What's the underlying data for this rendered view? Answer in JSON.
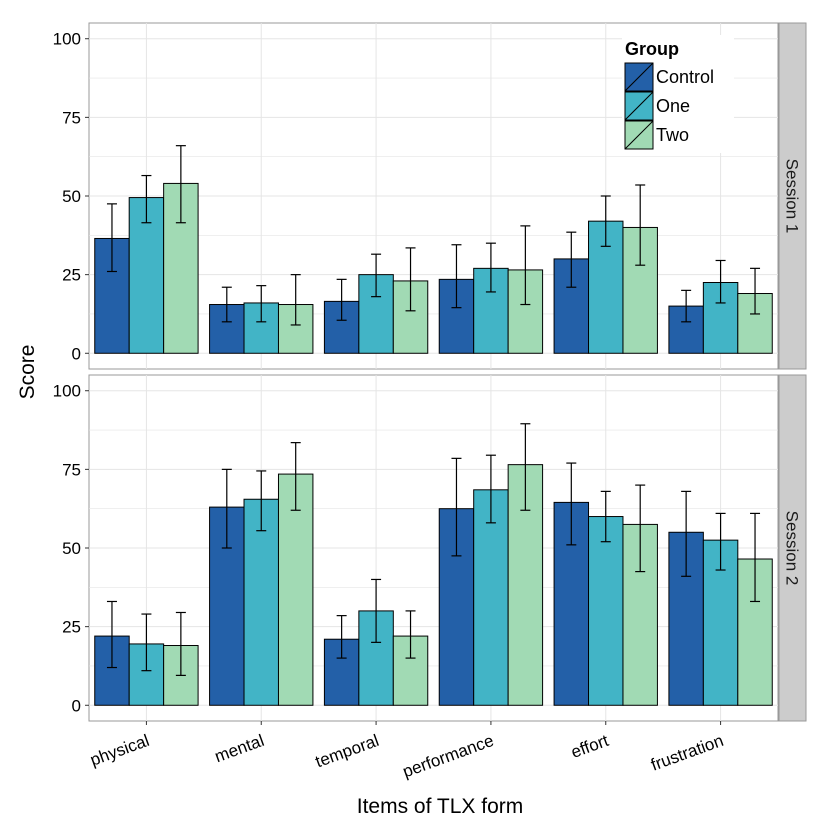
{
  "chart_data": {
    "type": "bar",
    "xlabel": "Items of TLX form",
    "ylabel": "Score",
    "ylim": [
      -5,
      105
    ],
    "yticks": [
      0,
      25,
      50,
      75,
      100
    ],
    "categories": [
      "physical",
      "mental",
      "temporal",
      "performance",
      "effort",
      "frustration"
    ],
    "legend": {
      "title": "Group",
      "position": "top-right",
      "entries": [
        "Control",
        "One",
        "Two"
      ]
    },
    "colors": {
      "Control": "#2360a8",
      "One": "#42b4c6",
      "Two": "#a1dab4",
      "strip": "#cccccc",
      "grid": "#e5e5e5",
      "panel_border": "#999999",
      "bar_outline": "#000000"
    },
    "panels": [
      {
        "label": "Session 1",
        "series": [
          {
            "name": "Control",
            "values": [
              36.5,
              15.5,
              16.5,
              23.5,
              30,
              15
            ],
            "err_low": [
              26,
              10,
              10.5,
              14.5,
              21,
              10
            ],
            "err_high": [
              47.5,
              21,
              23.5,
              34.5,
              38.5,
              20
            ]
          },
          {
            "name": "One",
            "values": [
              49.5,
              16,
              25,
              27,
              42,
              22.5
            ],
            "err_low": [
              41.5,
              10,
              18,
              19.5,
              34,
              16
            ],
            "err_high": [
              56.5,
              21.5,
              31.5,
              35,
              50,
              29.5
            ]
          },
          {
            "name": "Two",
            "values": [
              54,
              15.5,
              23,
              26.5,
              40,
              19
            ],
            "err_low": [
              41.5,
              9,
              13.5,
              15.5,
              28,
              12.5
            ],
            "err_high": [
              66,
              25,
              33.5,
              40.5,
              53.5,
              27
            ]
          }
        ]
      },
      {
        "label": "Session 2",
        "series": [
          {
            "name": "Control",
            "values": [
              22,
              63,
              21,
              62.5,
              64.5,
              55
            ],
            "err_low": [
              12,
              50,
              15,
              47.5,
              51,
              41
            ],
            "err_high": [
              33,
              75,
              28.5,
              78.5,
              77,
              68
            ]
          },
          {
            "name": "One",
            "values": [
              19.5,
              65.5,
              30,
              68.5,
              60,
              52.5
            ],
            "err_low": [
              11,
              55.5,
              20,
              58,
              52,
              43
            ],
            "err_high": [
              29,
              74.5,
              40,
              79.5,
              68,
              61
            ]
          },
          {
            "name": "Two",
            "values": [
              19,
              73.5,
              22,
              76.5,
              57.5,
              46.5
            ],
            "err_low": [
              9.5,
              62,
              15,
              62,
              42.5,
              33
            ],
            "err_high": [
              29.5,
              83.5,
              30,
              89.5,
              70,
              61
            ]
          }
        ]
      }
    ]
  }
}
